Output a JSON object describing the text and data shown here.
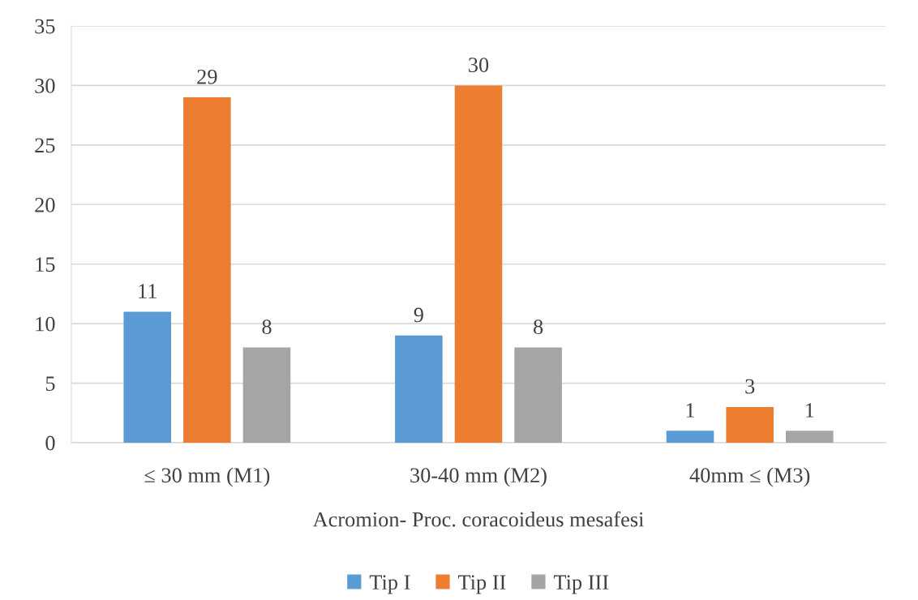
{
  "chart_data": {
    "type": "bar",
    "categories": [
      "≤ 30 mm (M1)",
      "30-40 mm (M2)",
      "40mm ≤ (M3)"
    ],
    "xlabel": "Acromion- Proc. coracoideus mesafesi",
    "series": [
      {
        "name": "Tip I",
        "color": "#5b9bd5",
        "values": [
          11,
          9,
          1
        ]
      },
      {
        "name": "Tip II",
        "color": "#ed7d31",
        "values": [
          29,
          30,
          3
        ]
      },
      {
        "name": "Tip III",
        "color": "#a5a5a5",
        "values": [
          8,
          8,
          1
        ]
      }
    ],
    "ylim": [
      0,
      35
    ],
    "yticks": [
      0,
      5,
      10,
      15,
      20,
      25,
      30,
      35
    ],
    "grid": "y",
    "legend": "bottom",
    "data_labels": true
  }
}
